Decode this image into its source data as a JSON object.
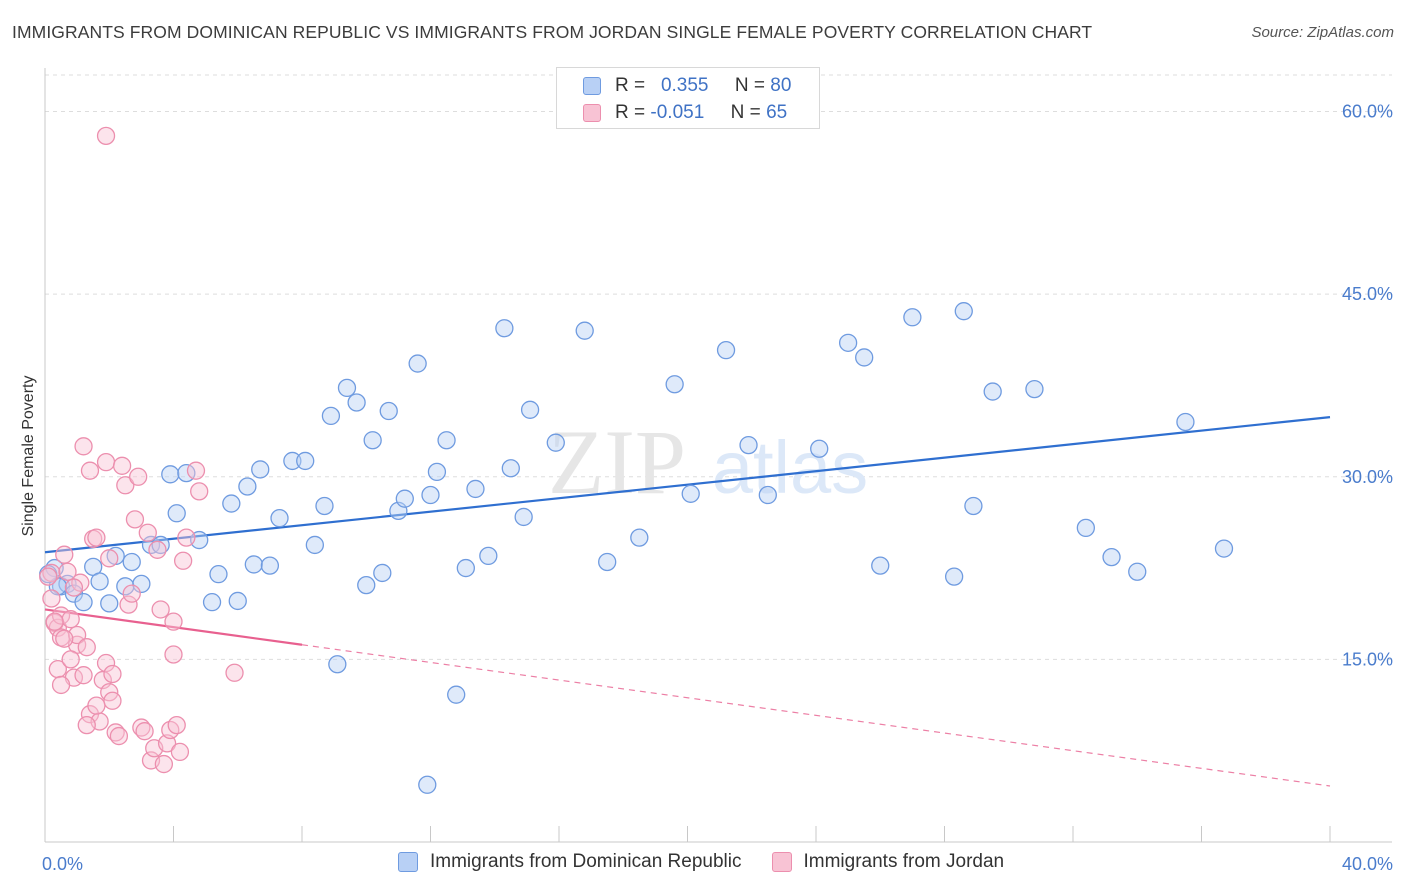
{
  "title": "IMMIGRANTS FROM DOMINICAN REPUBLIC VS IMMIGRANTS FROM JORDAN SINGLE FEMALE POVERTY CORRELATION CHART",
  "source": "Source: ZipAtlas.com",
  "watermark": {
    "zip": "ZIP",
    "atlas": "atlas"
  },
  "legend_top": [
    {
      "r_label": "R =",
      "r_value": "0.355",
      "n_label": "N =",
      "n_value": "80"
    },
    {
      "r_label": "R =",
      "r_value": "-0.051",
      "n_label": "N =",
      "n_value": "65"
    }
  ],
  "colors": {
    "blue_fill": "#b8d0f5",
    "blue_stroke": "#6f9be0",
    "blue_line": "#2f6fd0",
    "pink_fill": "#f8c3d4",
    "pink_stroke": "#ec8fae",
    "pink_line": "#e8608f",
    "tick": "#4a7ccc",
    "grid": "#dddddd"
  },
  "chart_data": {
    "type": "scatter",
    "ylabel": "Single Female Poverty",
    "xlim": [
      0,
      40
    ],
    "ylim": [
      0,
      63
    ],
    "y_ticks": [
      15,
      30,
      45,
      60
    ],
    "y_tick_labels": [
      "15.0%",
      "30.0%",
      "45.0%",
      "60.0%"
    ],
    "x_tick_labels": [
      "0.0%",
      "40.0%"
    ],
    "series": [
      {
        "name": "Immigrants from Dominican Republic",
        "color": "#6f9be0",
        "trend": {
          "x0": 0,
          "y0": 23.8,
          "x1": 40,
          "y1": 34.9,
          "dashed_from": null
        },
        "points": [
          [
            0.3,
            22.5
          ],
          [
            0.5,
            21.0
          ],
          [
            0.7,
            21.2
          ],
          [
            0.9,
            20.4
          ],
          [
            1.2,
            19.7
          ],
          [
            1.5,
            22.6
          ],
          [
            1.7,
            21.4
          ],
          [
            2.0,
            19.6
          ],
          [
            2.2,
            23.5
          ],
          [
            2.5,
            21.0
          ],
          [
            2.7,
            23.0
          ],
          [
            3.0,
            21.2
          ],
          [
            3.3,
            24.4
          ],
          [
            3.6,
            24.4
          ],
          [
            3.9,
            30.2
          ],
          [
            4.1,
            27.0
          ],
          [
            4.4,
            30.3
          ],
          [
            4.8,
            24.8
          ],
          [
            5.2,
            19.7
          ],
          [
            5.4,
            22.0
          ],
          [
            5.8,
            27.8
          ],
          [
            6.0,
            19.8
          ],
          [
            6.3,
            29.2
          ],
          [
            6.5,
            22.8
          ],
          [
            6.7,
            30.6
          ],
          [
            7.0,
            22.7
          ],
          [
            7.3,
            26.6
          ],
          [
            7.7,
            31.3
          ],
          [
            8.1,
            31.3
          ],
          [
            8.4,
            24.4
          ],
          [
            8.7,
            27.6
          ],
          [
            8.9,
            35.0
          ],
          [
            9.1,
            14.6
          ],
          [
            9.4,
            37.3
          ],
          [
            9.7,
            36.1
          ],
          [
            10.0,
            21.1
          ],
          [
            10.2,
            33.0
          ],
          [
            10.5,
            22.1
          ],
          [
            10.7,
            35.4
          ],
          [
            11.0,
            27.2
          ],
          [
            11.2,
            28.2
          ],
          [
            11.6,
            39.3
          ],
          [
            12.0,
            28.5
          ],
          [
            12.2,
            30.4
          ],
          [
            12.5,
            33.0
          ],
          [
            12.8,
            12.1
          ],
          [
            13.1,
            22.5
          ],
          [
            13.4,
            29.0
          ],
          [
            13.8,
            23.5
          ],
          [
            14.3,
            42.2
          ],
          [
            14.5,
            30.7
          ],
          [
            14.9,
            26.7
          ],
          [
            15.1,
            35.5
          ],
          [
            15.9,
            32.8
          ],
          [
            16.8,
            42.0
          ],
          [
            17.5,
            23.0
          ],
          [
            18.5,
            25.0
          ],
          [
            19.6,
            37.6
          ],
          [
            20.1,
            28.6
          ],
          [
            21.2,
            40.4
          ],
          [
            21.9,
            32.6
          ],
          [
            22.5,
            28.5
          ],
          [
            24.1,
            32.3
          ],
          [
            25.0,
            41.0
          ],
          [
            25.5,
            39.8
          ],
          [
            26.0,
            22.7
          ],
          [
            27.0,
            43.1
          ],
          [
            28.3,
            21.8
          ],
          [
            28.6,
            43.6
          ],
          [
            28.9,
            27.6
          ],
          [
            29.5,
            37.0
          ],
          [
            30.8,
            37.2
          ],
          [
            32.4,
            25.8
          ],
          [
            33.2,
            23.4
          ],
          [
            34.0,
            22.2
          ],
          [
            35.5,
            34.5
          ],
          [
            36.7,
            24.1
          ],
          [
            11.9,
            4.7
          ],
          [
            0.4,
            21.0
          ],
          [
            0.1,
            22.0
          ]
        ]
      },
      {
        "name": "Immigrants from Jordan",
        "color": "#ec8fae",
        "trend": {
          "x0": 0,
          "y0": 19.1,
          "x1": 40,
          "y1": 4.6,
          "dashed_from": 8.0
        },
        "points": [
          [
            0.2,
            22.1
          ],
          [
            0.3,
            18.0
          ],
          [
            0.4,
            17.6
          ],
          [
            0.4,
            14.2
          ],
          [
            0.5,
            18.6
          ],
          [
            0.5,
            16.8
          ],
          [
            0.6,
            23.6
          ],
          [
            0.7,
            22.2
          ],
          [
            0.8,
            18.3
          ],
          [
            0.9,
            13.5
          ],
          [
            1.0,
            16.2
          ],
          [
            1.0,
            17.0
          ],
          [
            1.1,
            21.3
          ],
          [
            1.2,
            32.5
          ],
          [
            1.3,
            16.0
          ],
          [
            1.4,
            30.5
          ],
          [
            1.4,
            10.5
          ],
          [
            1.5,
            24.9
          ],
          [
            1.6,
            25.0
          ],
          [
            1.7,
            9.9
          ],
          [
            1.8,
            13.3
          ],
          [
            1.9,
            31.2
          ],
          [
            1.9,
            14.7
          ],
          [
            2.0,
            12.3
          ],
          [
            2.1,
            13.8
          ],
          [
            2.1,
            11.6
          ],
          [
            2.2,
            9.0
          ],
          [
            2.3,
            8.7
          ],
          [
            2.4,
            30.9
          ],
          [
            2.5,
            29.3
          ],
          [
            2.6,
            19.5
          ],
          [
            2.7,
            20.4
          ],
          [
            2.8,
            26.5
          ],
          [
            2.9,
            30.0
          ],
          [
            3.0,
            9.4
          ],
          [
            3.1,
            9.1
          ],
          [
            3.2,
            25.4
          ],
          [
            3.3,
            6.7
          ],
          [
            3.4,
            7.7
          ],
          [
            3.5,
            24.0
          ],
          [
            3.6,
            19.1
          ],
          [
            3.7,
            6.4
          ],
          [
            3.8,
            8.1
          ],
          [
            3.9,
            9.2
          ],
          [
            4.0,
            18.1
          ],
          [
            4.0,
            15.4
          ],
          [
            4.1,
            9.6
          ],
          [
            4.2,
            7.4
          ],
          [
            4.3,
            23.1
          ],
          [
            4.4,
            25.0
          ],
          [
            4.7,
            30.5
          ],
          [
            4.8,
            28.8
          ],
          [
            5.9,
            13.9
          ],
          [
            1.9,
            58.0
          ],
          [
            0.2,
            20.0
          ],
          [
            0.3,
            18.1
          ],
          [
            0.6,
            16.7
          ],
          [
            0.8,
            15.0
          ],
          [
            1.2,
            13.7
          ],
          [
            0.1,
            21.8
          ],
          [
            0.5,
            12.9
          ],
          [
            1.6,
            11.2
          ],
          [
            0.9,
            20.9
          ],
          [
            1.3,
            9.6
          ],
          [
            2.0,
            23.3
          ]
        ]
      }
    ]
  },
  "bottom_legend": [
    "Immigrants from Dominican Republic",
    "Immigrants from Jordan"
  ]
}
